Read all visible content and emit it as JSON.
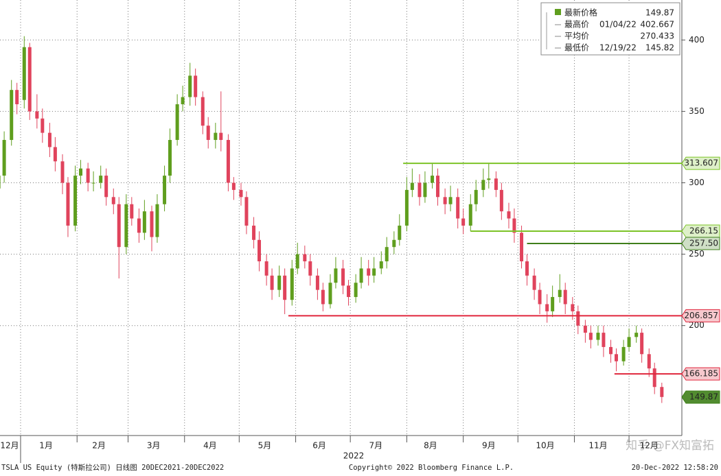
{
  "chart_data": {
    "type": "candlestick",
    "xlim": [
      0.7,
      375
    ],
    "ylim": [
      123,
      428
    ],
    "yticks": [
      200,
      250,
      300,
      350,
      400
    ],
    "x_grid": [
      12,
      43,
      71,
      102,
      132,
      163,
      193,
      224,
      255,
      285,
      316,
      346
    ],
    "xticks": [
      {
        "value": 6,
        "label": "12月"
      },
      {
        "value": 26,
        "label": "1月"
      },
      {
        "value": 55,
        "label": "2月"
      },
      {
        "value": 85,
        "label": "3月"
      },
      {
        "value": 116,
        "label": "4月"
      },
      {
        "value": 146,
        "label": "5月"
      },
      {
        "value": 176,
        "label": "6月"
      },
      {
        "value": 207,
        "label": "7月"
      },
      {
        "value": 237,
        "label": "8月"
      },
      {
        "value": 269,
        "label": "9月"
      },
      {
        "value": 300,
        "label": "10月"
      },
      {
        "value": 329,
        "label": "11月"
      },
      {
        "value": 357,
        "label": "12月"
      }
    ],
    "year_label": "2022",
    "up_color": "#5f9e1e",
    "down_color": "#e0435c",
    "candles": [
      [
        0,
        296,
        312,
        290,
        305
      ],
      [
        3,
        305,
        336,
        300,
        330
      ],
      [
        7,
        330,
        372,
        326,
        365
      ],
      [
        10,
        365,
        370,
        348,
        355
      ],
      [
        14,
        358,
        402.667,
        352,
        395
      ],
      [
        17,
        395,
        398,
        344,
        350
      ],
      [
        21,
        350,
        362,
        338,
        345
      ],
      [
        24,
        345,
        352,
        328,
        335
      ],
      [
        28,
        335,
        342,
        318,
        325
      ],
      [
        31,
        325,
        332,
        308,
        315
      ],
      [
        35,
        315,
        320,
        292,
        300
      ],
      [
        38,
        300,
        304,
        262,
        270
      ],
      [
        42,
        270,
        312,
        266,
        305
      ],
      [
        45,
        305,
        316,
        299,
        310
      ],
      [
        49,
        310,
        314,
        294,
        300
      ],
      [
        52,
        300,
        308,
        294,
        300
      ],
      [
        56,
        300,
        312,
        296,
        305
      ],
      [
        59,
        305,
        310,
        284,
        290
      ],
      [
        63,
        290,
        296,
        278,
        285
      ],
      [
        66,
        285,
        290,
        233,
        255
      ],
      [
        70,
        255,
        292,
        250,
        285
      ],
      [
        73,
        285,
        290,
        270,
        275
      ],
      [
        77,
        275,
        282,
        258,
        265
      ],
      [
        80,
        265,
        288,
        260,
        280
      ],
      [
        84,
        280,
        284,
        252,
        262
      ],
      [
        87,
        262,
        292,
        258,
        285
      ],
      [
        91,
        285,
        312,
        280,
        305
      ],
      [
        94,
        305,
        338,
        300,
        330
      ],
      [
        98,
        330,
        362,
        326,
        355
      ],
      [
        101,
        355,
        368,
        350,
        360
      ],
      [
        105,
        360,
        384,
        354,
        375
      ],
      [
        108,
        375,
        380,
        354,
        360
      ],
      [
        112,
        360,
        364,
        334,
        340
      ],
      [
        115,
        340,
        346,
        324,
        330
      ],
      [
        119,
        330,
        342,
        324,
        335
      ],
      [
        122,
        335,
        364,
        322,
        330
      ],
      [
        126,
        330,
        334,
        294,
        300
      ],
      [
        129,
        300,
        304,
        288,
        295
      ],
      [
        133,
        295,
        300,
        284,
        290
      ],
      [
        136,
        290,
        294,
        264,
        270
      ],
      [
        140,
        270,
        276,
        254,
        260
      ],
      [
        143,
        260,
        266,
        238,
        245
      ],
      [
        147,
        245,
        250,
        228,
        235
      ],
      [
        150,
        235,
        240,
        218,
        225
      ],
      [
        154,
        225,
        242,
        220,
        235
      ],
      [
        157,
        235,
        240,
        208,
        218
      ],
      [
        161,
        218,
        246,
        214,
        240
      ],
      [
        164,
        240,
        258,
        236,
        250
      ],
      [
        168,
        250,
        256,
        240,
        245
      ],
      [
        171,
        245,
        250,
        228,
        235
      ],
      [
        175,
        235,
        240,
        218,
        225
      ],
      [
        178,
        225,
        230,
        210,
        215
      ],
      [
        182,
        215,
        236,
        212,
        230
      ],
      [
        185,
        230,
        248,
        226,
        240
      ],
      [
        189,
        240,
        246,
        222,
        228
      ],
      [
        192,
        228,
        232,
        214,
        220
      ],
      [
        196,
        220,
        236,
        216,
        230
      ],
      [
        199,
        230,
        248,
        226,
        240
      ],
      [
        203,
        240,
        246,
        228,
        235
      ],
      [
        206,
        235,
        248,
        230,
        240
      ],
      [
        210,
        240,
        252,
        236,
        245
      ],
      [
        213,
        245,
        262,
        240,
        255
      ],
      [
        217,
        255,
        266,
        250,
        260
      ],
      [
        220,
        260,
        278,
        256,
        270
      ],
      [
        224,
        270,
        304,
        266,
        295
      ],
      [
        227,
        295,
        310,
        290,
        300
      ],
      [
        231,
        300,
        306,
        284,
        290
      ],
      [
        234,
        290,
        308,
        286,
        300
      ],
      [
        238,
        300,
        314,
        296,
        305
      ],
      [
        241,
        305,
        310,
        284,
        290
      ],
      [
        245,
        290,
        296,
        278,
        285
      ],
      [
        248,
        285,
        298,
        280,
        290
      ],
      [
        252,
        290,
        296,
        268,
        275
      ],
      [
        255,
        275,
        282,
        264,
        270
      ],
      [
        259,
        270,
        292,
        266,
        285
      ],
      [
        262,
        285,
        302,
        280,
        295
      ],
      [
        266,
        295,
        310,
        290,
        302
      ],
      [
        269,
        302,
        314,
        296,
        303
      ],
      [
        273,
        303,
        308,
        290,
        295
      ],
      [
        276,
        295,
        300,
        274,
        280
      ],
      [
        280,
        280,
        286,
        268,
        275
      ],
      [
        283,
        275,
        282,
        258,
        265
      ],
      [
        287,
        265,
        270,
        240,
        245
      ],
      [
        290,
        245,
        250,
        228,
        235
      ],
      [
        294,
        235,
        240,
        218,
        225
      ],
      [
        297,
        225,
        230,
        208,
        215
      ],
      [
        301,
        215,
        222,
        202,
        210
      ],
      [
        304,
        210,
        228,
        206,
        220
      ],
      [
        308,
        220,
        236,
        216,
        225
      ],
      [
        311,
        225,
        230,
        208,
        215
      ],
      [
        315,
        215,
        220,
        204,
        210
      ],
      [
        318,
        210,
        214,
        194,
        200
      ],
      [
        322,
        200,
        204,
        188,
        195
      ],
      [
        325,
        195,
        200,
        184,
        190
      ],
      [
        329,
        190,
        200,
        186,
        195
      ],
      [
        332,
        195,
        200,
        178,
        185
      ],
      [
        336,
        185,
        190,
        174,
        180
      ],
      [
        339,
        180,
        184,
        168,
        175
      ],
      [
        343,
        175,
        190,
        172,
        185
      ],
      [
        346,
        185,
        198,
        182,
        192
      ],
      [
        350,
        192,
        200,
        188,
        195
      ],
      [
        353,
        195,
        198,
        174,
        180
      ],
      [
        357,
        180,
        184,
        164,
        170
      ],
      [
        360,
        170,
        174,
        152,
        157
      ],
      [
        364,
        157,
        160,
        145.82,
        150
      ]
    ],
    "levels": [
      {
        "value": 313.607,
        "start": 222,
        "color": "#7cc326"
      },
      {
        "value": 266.15,
        "start": 259,
        "color": "#7cc326"
      },
      {
        "value": 257.5,
        "label": "257.50",
        "start": 290,
        "color": "#3f7f1a"
      },
      {
        "value": 206.857,
        "start": 159,
        "color": "#e0263c"
      },
      {
        "value": 166.185,
        "start": 338,
        "color": "#e0263c"
      },
      {
        "value": 149.87,
        "start": 364,
        "color": "#3f7f1a"
      }
    ],
    "legend": [
      {
        "name": "最新价格",
        "value": 149.87
      },
      {
        "name": "最高价",
        "date": "01/04/22",
        "value": 402.667
      },
      {
        "name": "平均价",
        "value": 270.433
      },
      {
        "name": "最低价",
        "date": "12/19/22",
        "value": 145.82
      }
    ],
    "footer_left": "TSLA US Equity (特斯拉公司)  日线图 20DEC2021-20DEC2022",
    "footer_center": "Copyright© 2022 Bloomberg Finance L.P.",
    "footer_right": "20-Dec-2022 12:58:20",
    "watermark": "知乎 @FX知富拓"
  }
}
